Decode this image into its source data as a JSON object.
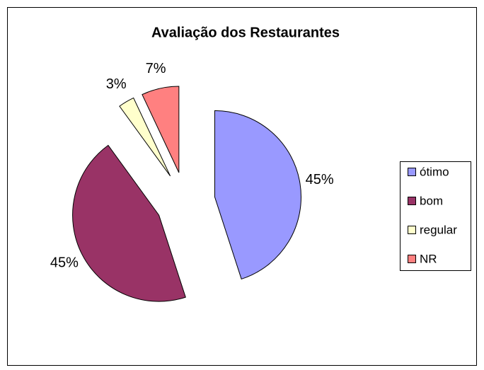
{
  "chart_data": {
    "type": "pie",
    "title": "Avaliação dos Restaurantes",
    "categories": [
      "ótimo",
      "bom",
      "regular",
      "NR"
    ],
    "values": [
      45,
      45,
      3,
      7
    ],
    "value_labels": [
      "45%",
      "45%",
      "3%",
      "7%"
    ],
    "colors": [
      "#9999ff",
      "#993366",
      "#ffffcc",
      "#ff8080"
    ],
    "legend": "right"
  }
}
